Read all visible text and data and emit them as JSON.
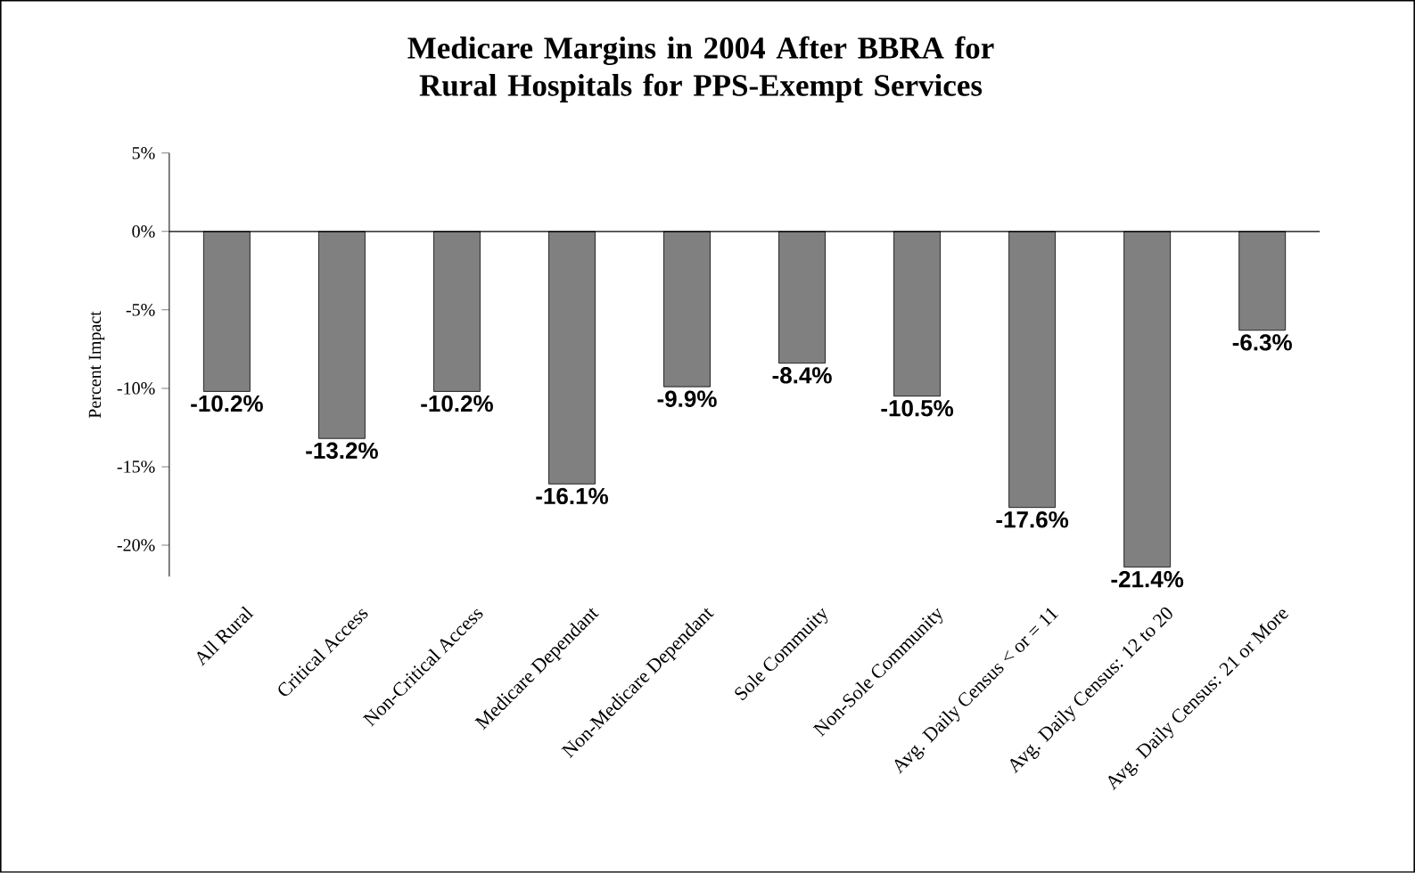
{
  "chart_data": {
    "type": "bar",
    "title": "Medicare Margins in 2004 After BBRA for Rural Hospitals for PPS-Exempt Services",
    "ylabel": "Percent Impact",
    "categories": [
      "All Rural",
      "Critical Access",
      "Non-Critical Access",
      "Medicare Dependant",
      "Non-Medicare Dependant",
      "Sole Commuity",
      "Non-Sole Community",
      "Avg. Daily Census < or = 11",
      "Avg. Daily Census: 12 to 20",
      "Avg. Daily Census: 21 or More"
    ],
    "values": [
      -10.2,
      -13.2,
      -10.2,
      -16.1,
      -9.9,
      -8.4,
      -10.5,
      -17.6,
      -21.4,
      -6.3
    ],
    "value_labels": [
      "-10.2%",
      "-13.2%",
      "-10.2%",
      "-16.1%",
      "-9.9%",
      "-8.4%",
      "-10.5%",
      "-17.6%",
      "-21.4%",
      "-6.3%"
    ],
    "color": "#808080",
    "ylim": [
      -22,
      5
    ],
    "yticks": [
      {
        "value": -20,
        "label": "-20%"
      },
      {
        "value": -15,
        "label": "-15%"
      },
      {
        "value": -10,
        "label": "-10%"
      },
      {
        "value": -5,
        "label": "-5%"
      },
      {
        "value": 0,
        "label": "0%"
      },
      {
        "value": 5,
        "label": "5%"
      }
    ]
  }
}
